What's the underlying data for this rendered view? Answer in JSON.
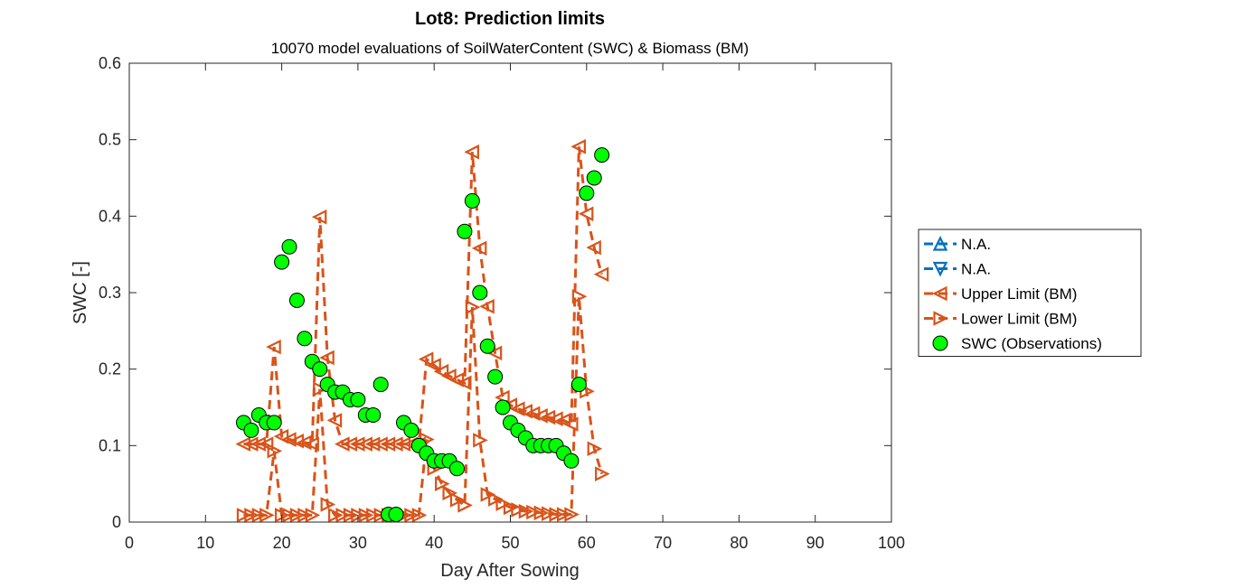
{
  "chart_data": {
    "type": "line",
    "title": "Lot8: Prediction limits",
    "subtitle": "10070 model evaluations of SoilWaterContent (SWC) & Biomass (BM)",
    "xlabel": "Day After Sowing",
    "ylabel": "SWC [-]",
    "xlim": [
      0,
      100
    ],
    "ylim": [
      0,
      0.6
    ],
    "xticks": [
      "0",
      "10",
      "20",
      "30",
      "40",
      "50",
      "60",
      "70",
      "80",
      "90",
      "100"
    ],
    "yticks": [
      "0",
      "0.1",
      "0.2",
      "0.3",
      "0.4",
      "0.5",
      "0.6"
    ],
    "legend_position": "outside-right",
    "grid": false,
    "series": [
      {
        "name": "N.A.",
        "color": "#0072BD",
        "marker": "triangle-up",
        "line": "dashed",
        "x": [],
        "y": []
      },
      {
        "name": "N.A.",
        "color": "#0072BD",
        "marker": "triangle-down",
        "line": "dashed",
        "x": [],
        "y": []
      },
      {
        "name": "Upper Limit (BM)",
        "color": "#D95319",
        "marker": "triangle-left",
        "line": "dashed",
        "x": [
          15,
          16,
          17,
          18,
          19,
          20,
          21,
          22,
          23,
          24,
          25,
          26,
          27,
          28,
          29,
          30,
          31,
          32,
          33,
          34,
          35,
          36,
          37,
          38,
          39,
          40,
          41,
          42,
          43,
          44,
          45,
          46,
          47,
          48,
          49,
          50,
          51,
          52,
          53,
          54,
          55,
          56,
          57,
          58,
          59,
          60,
          61,
          62
        ],
        "y": [
          0.102,
          0.102,
          0.102,
          0.102,
          0.229,
          0.112,
          0.108,
          0.106,
          0.104,
          0.102,
          0.399,
          0.215,
          0.133,
          0.102,
          0.102,
          0.102,
          0.102,
          0.102,
          0.102,
          0.102,
          0.102,
          0.102,
          0.102,
          0.102,
          0.213,
          0.205,
          0.197,
          0.191,
          0.186,
          0.182,
          0.484,
          0.358,
          0.282,
          0.221,
          0.163,
          0.153,
          0.148,
          0.145,
          0.142,
          0.139,
          0.137,
          0.135,
          0.133,
          0.128,
          0.491,
          0.403,
          0.359,
          0.324
        ]
      },
      {
        "name": "Lower Limit (BM)",
        "color": "#D95319",
        "marker": "triangle-right",
        "line": "dashed",
        "x": [
          15,
          16,
          17,
          18,
          19,
          20,
          21,
          22,
          23,
          24,
          25,
          26,
          27,
          28,
          29,
          30,
          31,
          32,
          33,
          34,
          35,
          36,
          37,
          38,
          39,
          40,
          41,
          42,
          43,
          44,
          45,
          46,
          47,
          48,
          49,
          50,
          51,
          52,
          53,
          54,
          55,
          56,
          57,
          58,
          59,
          60,
          61,
          62
        ],
        "y": [
          0.009,
          0.009,
          0.009,
          0.009,
          0.093,
          0.009,
          0.009,
          0.009,
          0.009,
          0.009,
          0.174,
          0.023,
          0.009,
          0.009,
          0.009,
          0.009,
          0.009,
          0.009,
          0.009,
          0.009,
          0.009,
          0.009,
          0.009,
          0.009,
          0.108,
          0.07,
          0.05,
          0.038,
          0.029,
          0.022,
          0.281,
          0.107,
          0.036,
          0.03,
          0.024,
          0.019,
          0.016,
          0.014,
          0.013,
          0.012,
          0.011,
          0.01,
          0.01,
          0.01,
          0.295,
          0.171,
          0.096,
          0.063
        ]
      },
      {
        "name": "SWC (Observations)",
        "color": "#00FF00",
        "marker": "circle",
        "line": "none",
        "x": [
          15,
          16,
          17,
          18,
          19,
          20,
          21,
          22,
          23,
          24,
          25,
          26,
          27,
          28,
          29,
          30,
          31,
          32,
          33,
          34,
          35,
          36,
          37,
          38,
          39,
          40,
          41,
          42,
          43,
          44,
          45,
          46,
          47,
          48,
          49,
          50,
          51,
          52,
          53,
          54,
          55,
          56,
          57,
          58,
          59,
          60,
          61,
          62
        ],
        "y": [
          0.13,
          0.12,
          0.14,
          0.13,
          0.13,
          0.34,
          0.36,
          0.29,
          0.24,
          0.21,
          0.2,
          0.18,
          0.17,
          0.17,
          0.16,
          0.16,
          0.14,
          0.14,
          0.18,
          0.01,
          0.01,
          0.13,
          0.12,
          0.1,
          0.09,
          0.08,
          0.08,
          0.08,
          0.07,
          0.38,
          0.42,
          0.3,
          0.23,
          0.19,
          0.15,
          0.13,
          0.12,
          0.11,
          0.1,
          0.1,
          0.1,
          0.1,
          0.09,
          0.08,
          0.18,
          0.43,
          0.45,
          0.48
        ]
      }
    ]
  }
}
